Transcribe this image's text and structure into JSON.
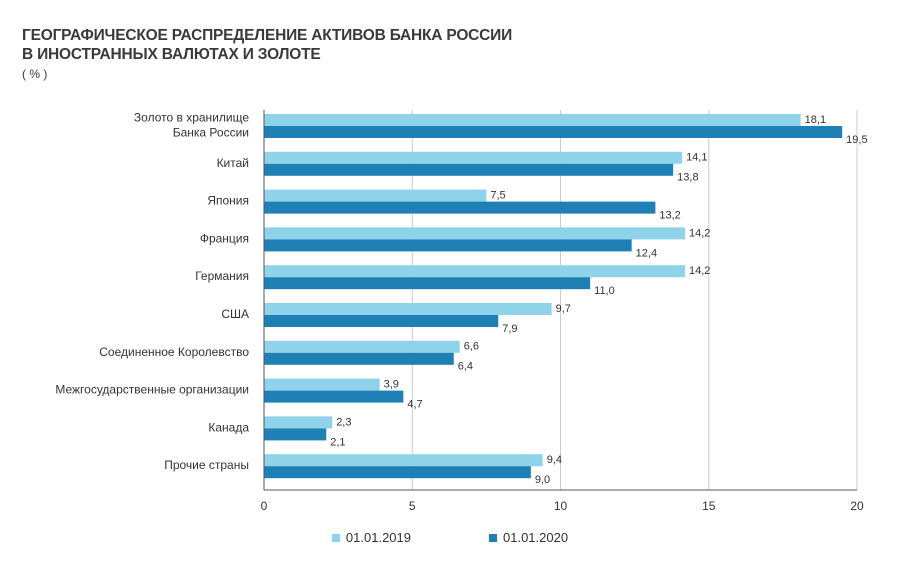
{
  "title_lines": [
    "ГЕОГРАФИЧЕСКОЕ РАСПРЕДЕЛЕНИЕ АКТИВОВ БАНКА РОССИИ",
    "В ИНОСТРАННЫХ ВАЛЮТАХ И ЗОЛОТЕ"
  ],
  "unit": "( % )",
  "colors": {
    "series_2019": "#8fd3ea",
    "series_2020": "#1f80b5",
    "grid": "#cccccc",
    "axis": "#555555"
  },
  "chart_data": {
    "type": "bar",
    "orientation": "horizontal",
    "categories": [
      "Золото в хранилище\nБанка России",
      "Китай",
      "Япония",
      "Франция",
      "Германия",
      "США",
      "Соединенное Королевство",
      "Межгосударственные организации",
      "Канада",
      "Прочие страны"
    ],
    "series": [
      {
        "name": "01.01.2019",
        "values": [
          18.1,
          14.1,
          7.5,
          14.2,
          14.2,
          9.7,
          6.6,
          3.9,
          2.3,
          9.4
        ],
        "labels": [
          "18,1",
          "14,1",
          "7,5",
          "14,2",
          "14,2",
          "9,7",
          "6,6",
          "3,9",
          "2,3",
          "9,4"
        ]
      },
      {
        "name": "01.01.2020",
        "values": [
          19.5,
          13.8,
          13.2,
          12.4,
          11.0,
          7.9,
          6.4,
          4.7,
          2.1,
          9.0
        ],
        "labels": [
          "19,5",
          "13,8",
          "13,2",
          "12,4",
          "11,0",
          "7,9",
          "6,4",
          "4,7",
          "2,1",
          "9,0"
        ]
      }
    ],
    "xlim": [
      0,
      20
    ],
    "xticks": [
      0,
      5,
      10,
      15,
      20
    ],
    "grid": true,
    "legend": "bottom"
  }
}
